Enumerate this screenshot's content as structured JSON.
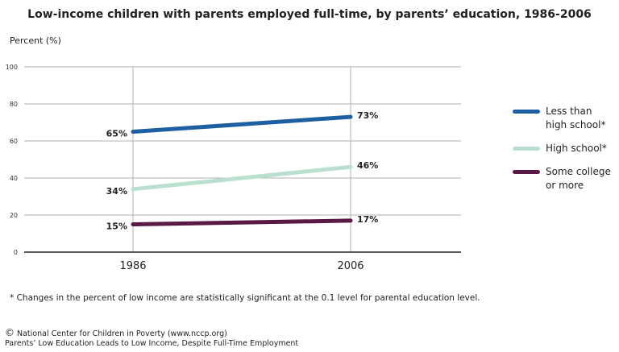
{
  "chart_data": {
    "type": "line",
    "title": "Low-income children with parents employed full-time, by parents’ education, 1986-2006",
    "ylabel": "Percent (%)",
    "xlabel": "",
    "categories": [
      "1986",
      "2006"
    ],
    "ylim": [
      0,
      100
    ],
    "yticks": [
      0,
      20,
      40,
      60,
      80,
      100
    ],
    "grid": true,
    "legend_position": "right",
    "series": [
      {
        "name": "Less than high school*",
        "name_lines": [
          "Less than",
          "high school*"
        ],
        "values": [
          65,
          73
        ],
        "labels": [
          "65%",
          "73%"
        ],
        "color": "#1d5fa0"
      },
      {
        "name": "High school*",
        "name_lines": [
          "High school*"
        ],
        "values": [
          34,
          46
        ],
        "labels": [
          "34%",
          "46%"
        ],
        "color": "#b9e0cf"
      },
      {
        "name": "Some college or more",
        "name_lines": [
          "Some college",
          "or more"
        ],
        "values": [
          15,
          17
        ],
        "labels": [
          "15%",
          "17%"
        ],
        "color": "#5b1a45"
      }
    ]
  },
  "footnote": "* Changes in the percent of low income are statistically significant at the 0.1 level for parental education level.",
  "credit": {
    "symbol": "©",
    "line1": "National Center for Children in Poverty (www.nccp.org)",
    "line2": "Parents’ Low Education Leads to Low Income, Despite Full-Time Employment"
  }
}
